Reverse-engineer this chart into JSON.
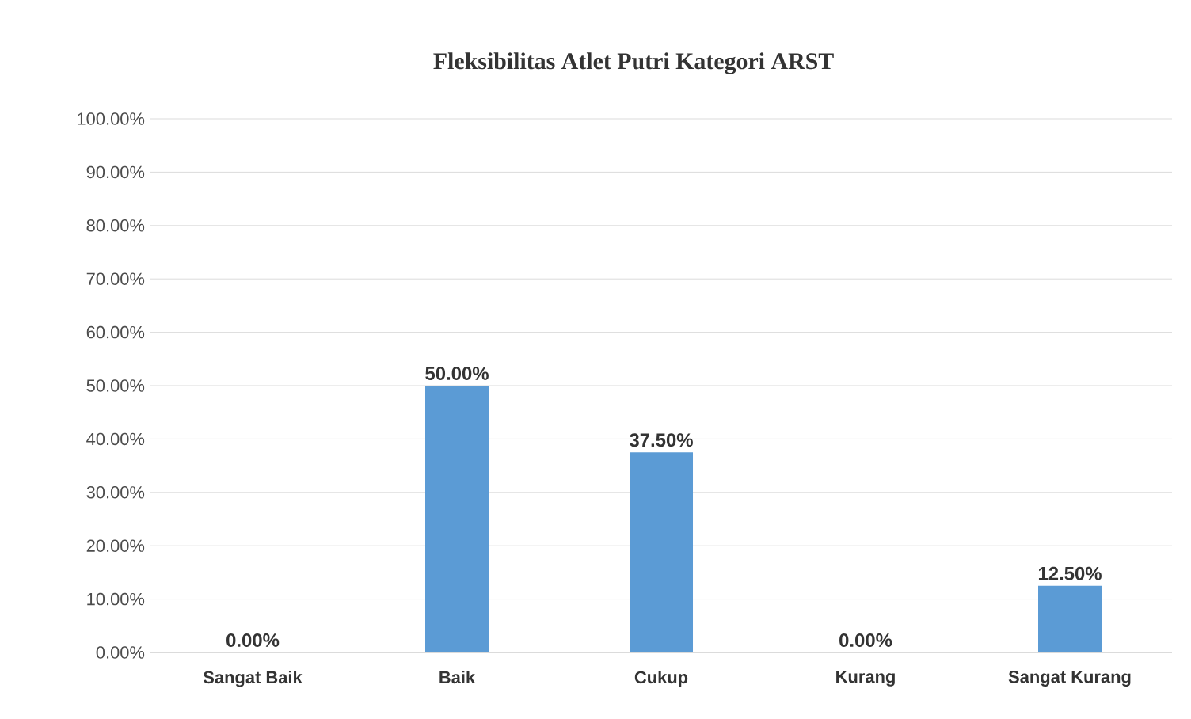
{
  "chart_data": {
    "type": "bar",
    "title": "Fleksibilitas  Atlet Putri Kategori ARST",
    "categories": [
      "Sangat Baik",
      "Baik",
      "Cukup",
      "Kurang",
      "Sangat Kurang"
    ],
    "values": [
      0,
      50,
      37.5,
      0,
      12.5
    ],
    "value_labels": [
      "0.00%",
      "50.00%",
      "37.50%",
      "0.00%",
      "12.50%"
    ],
    "color": "#5b9bd5",
    "ylim": [
      0,
      100
    ],
    "yticks": [
      {
        "value": 0,
        "label": "0.00%"
      },
      {
        "value": 10,
        "label": "10.00%"
      },
      {
        "value": 20,
        "label": "20.00%"
      },
      {
        "value": 30,
        "label": "30.00%"
      },
      {
        "value": 40,
        "label": "40.00%"
      },
      {
        "value": 50,
        "label": "50.00%"
      },
      {
        "value": 60,
        "label": "60.00%"
      },
      {
        "value": 70,
        "label": "70.00%"
      },
      {
        "value": 80,
        "label": "80.00%"
      },
      {
        "value": 90,
        "label": "90.00%"
      },
      {
        "value": 100,
        "label": "100.00%"
      }
    ],
    "grid": "y"
  }
}
